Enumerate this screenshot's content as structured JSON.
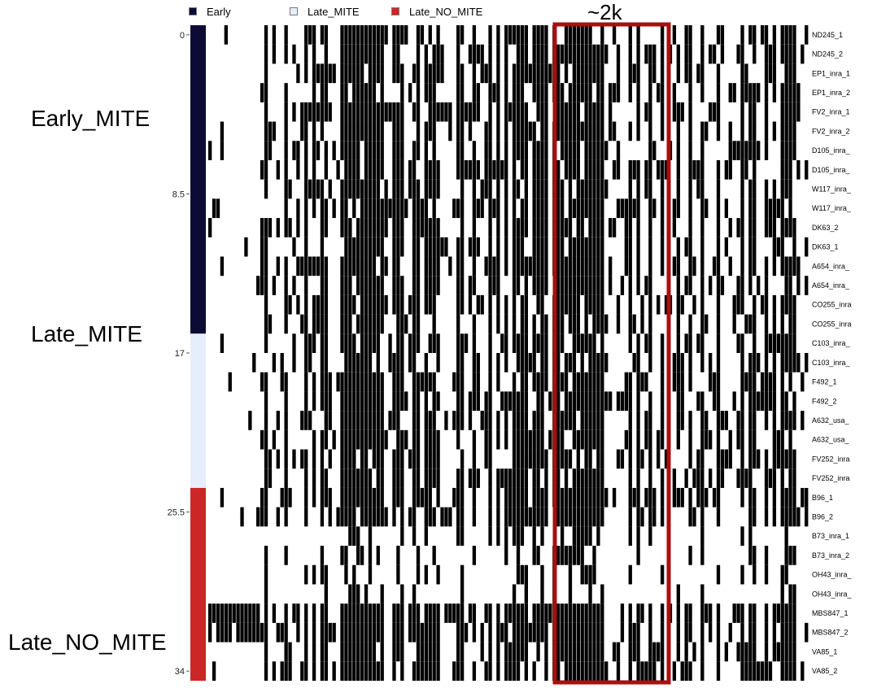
{
  "chart_data": {
    "type": "heatmap",
    "legend": [
      {
        "label": "Early",
        "color": "#0b0b35"
      },
      {
        "label": "Late_MITE",
        "color": "#e6eefc"
      },
      {
        "label": "Late_NO_MITE",
        "color": "#cd2626"
      }
    ],
    "group_labels": [
      "Early_MITE",
      "Late_MITE",
      "Late_NO_MITE"
    ],
    "row_groups": [
      {
        "group": "Early",
        "start": 0,
        "end": 15
      },
      {
        "group": "Late_MITE",
        "start": 16,
        "end": 23
      },
      {
        "group": "Late_NO_MITE",
        "start": 24,
        "end": 33
      }
    ],
    "y_ticks": [
      {
        "value": 0,
        "label": "0"
      },
      {
        "value": 8.5,
        "label": "8.5"
      },
      {
        "value": 17,
        "label": "17"
      },
      {
        "value": 25.5,
        "label": "25.5"
      },
      {
        "value": 34,
        "label": "34"
      }
    ],
    "y_range": [
      0,
      34
    ],
    "row_labels": [
      "ND245_1",
      "ND245_2",
      "EP1_inra_1",
      "EP1_inra_2",
      "FV2_inra_1",
      "FV2_inra_2",
      "D105_inra_",
      "D105_inra_",
      "W117_inra_",
      "W117_inra_",
      "DK63_2",
      "DK63_1",
      "A654_inra_",
      "A654_inra_",
      "CO255_inra",
      "CO255_inra",
      "C103_inra_",
      "C103_inra_",
      "F492_1",
      "F492_2",
      "A632_usa_",
      "A632_usa_",
      "FV252_inra",
      "FV252_inra",
      "B96_1",
      "B96_2",
      "B73_inra_1",
      "B73_inra_2",
      "OH43_inra_",
      "OH43_inra_",
      "MBS847_1",
      "MBS847_2",
      "VA85_1",
      "VA85_2"
    ],
    "highlight": {
      "label": "~2k",
      "color": "#a80f0f"
    },
    "cell_colors": {
      "present": "#000000",
      "absent": "#ffffff"
    },
    "grid": false
  }
}
